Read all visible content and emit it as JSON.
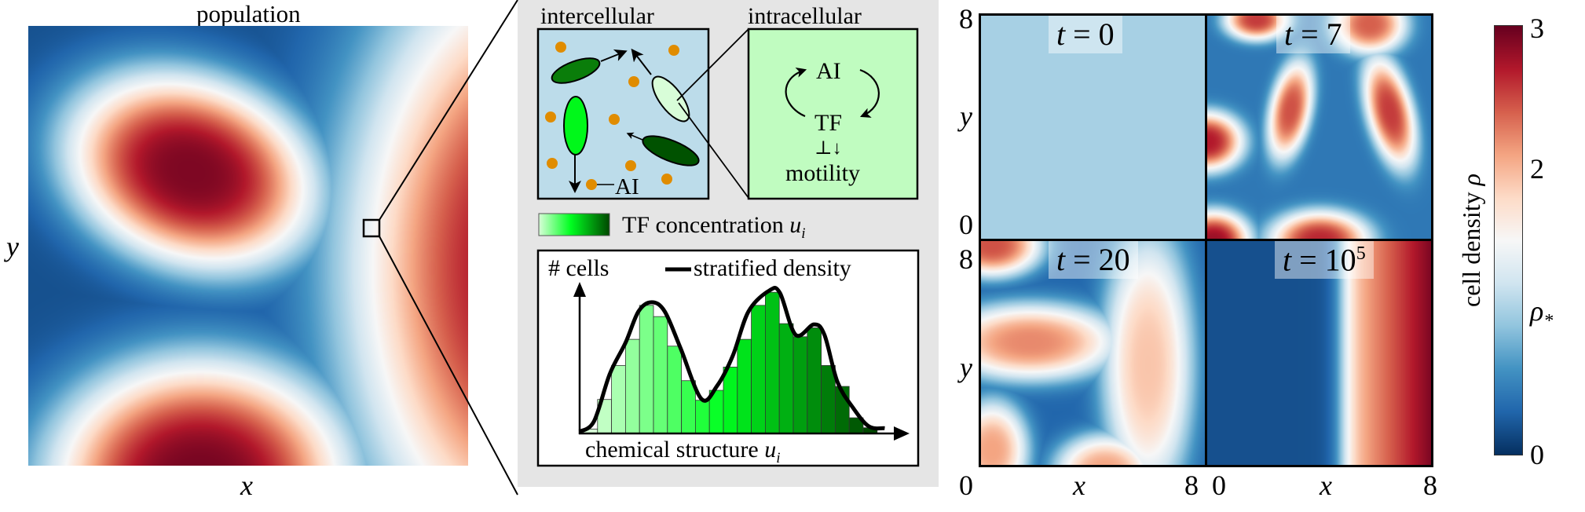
{
  "population_panel": {
    "title": "population",
    "xlabel": "x",
    "ylabel": "y"
  },
  "schematic": {
    "intercellular_title": "intercellular",
    "intracellular_title": "intracellular",
    "ai_label": "AI",
    "intracellular": {
      "ai": "AI",
      "tf": "TF",
      "regulation": "⊥↓",
      "motility": "motility"
    },
    "tf_legend": "TF concentration ",
    "tf_legend_var": "u",
    "tf_legend_sub": "i",
    "colors": {
      "background": "#e5e5e5",
      "intercellular_bg": "#bcdcea",
      "intracellular_bg": "#c0fcc0",
      "autoinducer": "#e08c00",
      "tf_low": "#d8ffd8",
      "tf_mid": "#00ff20",
      "tf_high": "#004800"
    }
  },
  "histogram": {
    "ylabel": "# cells",
    "legend": "stratified density",
    "xlabel": "chemical structure ",
    "xlabel_var": "u",
    "xlabel_sub": "i",
    "bars": [
      1.7,
      13,
      26,
      36,
      49,
      44.7,
      33.4,
      20.2,
      12.7,
      16.5,
      25.4,
      36,
      49,
      54,
      42,
      37,
      40.4,
      26,
      18,
      6,
      2.2
    ],
    "density": [
      [
        -0.28,
        0.7
      ],
      [
        0.75,
        4.7
      ],
      [
        1.87,
        22.7
      ],
      [
        3.0,
        34.7
      ],
      [
        3.93,
        46.7
      ],
      [
        4.87,
        50.2
      ],
      [
        5.8,
        46.7
      ],
      [
        6.93,
        32.7
      ],
      [
        8.43,
        13.2
      ],
      [
        9.55,
        18.2
      ],
      [
        10.67,
        29.7
      ],
      [
        11.8,
        46.7
      ],
      [
        13.3,
        54.7
      ],
      [
        14.05,
        53.7
      ],
      [
        15.17,
        37.7
      ],
      [
        16.48,
        41.7
      ],
      [
        17.23,
        37.7
      ],
      [
        18.16,
        19.7
      ],
      [
        19.29,
        9.7
      ],
      [
        20.41,
        2.7
      ],
      [
        21.54,
        2.0
      ]
    ]
  },
  "time_panels": {
    "panels": [
      {
        "label_t": "t",
        "label_eq": " = 0",
        "label_sup": ""
      },
      {
        "label_t": "t",
        "label_eq": " = 7",
        "label_sup": ""
      },
      {
        "label_t": "t",
        "label_eq": " = 20",
        "label_sup": ""
      },
      {
        "label_t": "t",
        "label_eq": " = 10",
        "label_sup": "5"
      }
    ],
    "xlabel": "x",
    "ylabel": "y",
    "ticks": {
      "min": "0",
      "max": "8"
    },
    "range": [
      0,
      8
    ]
  },
  "colorbar": {
    "label": "cell density ",
    "label_var": "ρ",
    "ticks": [
      {
        "value": 3,
        "label": "3"
      },
      {
        "value": 2,
        "label": "2"
      },
      {
        "value": 1,
        "label": "ρ",
        "sub": "*"
      },
      {
        "value": 0,
        "label": "0"
      }
    ],
    "range": [
      0,
      3
    ],
    "colormap": "RdBu_r",
    "colormap_stops": [
      "#053061",
      "#2166ac",
      "#4393c3",
      "#92c5de",
      "#d1e5f0",
      "#f7f7f7",
      "#fddbc7",
      "#f4a582",
      "#d6604d",
      "#b2182b",
      "#67001f"
    ]
  }
}
